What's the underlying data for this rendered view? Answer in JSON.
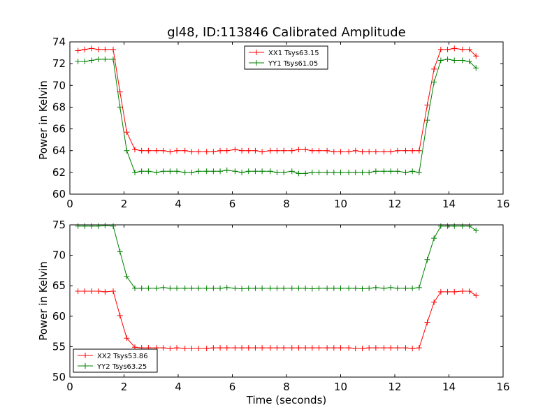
{
  "chart_data": [
    {
      "type": "line",
      "title": "gl48, ID:113846 Calibrated Amplitude",
      "xlabel": "",
      "ylabel": "Power in Kelvin",
      "xlim": [
        0,
        16
      ],
      "ylim": [
        60,
        74
      ],
      "xticks": [
        "0",
        "2",
        "4",
        "6",
        "8",
        "10",
        "12",
        "14",
        "16"
      ],
      "yticks": [
        "60",
        "62",
        "64",
        "66",
        "68",
        "70",
        "72",
        "74"
      ],
      "grid": false,
      "legend": "top-center",
      "x": [
        0.3,
        0.55,
        0.8,
        1.05,
        1.3,
        1.6,
        1.85,
        2.1,
        2.4,
        2.65,
        2.9,
        3.2,
        3.45,
        3.7,
        3.95,
        4.25,
        4.5,
        4.75,
        5.05,
        5.3,
        5.55,
        5.8,
        6.1,
        6.35,
        6.6,
        6.85,
        7.1,
        7.4,
        7.65,
        7.9,
        8.2,
        8.45,
        8.7,
        8.95,
        9.2,
        9.5,
        9.75,
        10.0,
        10.3,
        10.55,
        10.8,
        11.05,
        11.3,
        11.6,
        11.85,
        12.1,
        12.4,
        12.65,
        12.9,
        13.2,
        13.45,
        13.7,
        13.95,
        14.2,
        14.5,
        14.75,
        15.0
      ],
      "series": [
        {
          "name": "XX1 Tsys63.15",
          "color": "#ff0000",
          "values": [
            73.2,
            73.3,
            73.4,
            73.3,
            73.3,
            73.3,
            69.4,
            65.7,
            64.1,
            64.0,
            64.0,
            64.0,
            64.0,
            63.9,
            64.0,
            64.0,
            63.9,
            63.9,
            63.9,
            63.9,
            64.0,
            64.0,
            64.1,
            64.0,
            64.0,
            64.0,
            63.9,
            64.0,
            64.0,
            64.0,
            64.0,
            64.1,
            64.1,
            64.0,
            64.0,
            64.0,
            63.9,
            63.9,
            63.9,
            64.0,
            63.9,
            63.9,
            63.9,
            63.9,
            63.9,
            64.0,
            64.0,
            64.0,
            64.0,
            68.2,
            71.5,
            73.3,
            73.3,
            73.4,
            73.3,
            73.3,
            72.7
          ]
        },
        {
          "name": "YY1 Tsys61.05",
          "color": "#008000",
          "values": [
            72.2,
            72.2,
            72.3,
            72.4,
            72.4,
            72.4,
            68.0,
            64.0,
            62.0,
            62.1,
            62.1,
            62.0,
            62.1,
            62.1,
            62.1,
            62.0,
            62.0,
            62.1,
            62.1,
            62.1,
            62.1,
            62.2,
            62.1,
            62.0,
            62.1,
            62.1,
            62.1,
            62.1,
            62.0,
            62.0,
            62.1,
            61.9,
            61.9,
            62.0,
            62.0,
            62.0,
            62.0,
            62.0,
            62.0,
            62.0,
            62.0,
            62.0,
            62.1,
            62.1,
            62.1,
            62.1,
            62.0,
            62.1,
            62.0,
            66.8,
            70.3,
            72.3,
            72.4,
            72.3,
            72.3,
            72.2,
            71.6
          ]
        }
      ]
    },
    {
      "type": "line",
      "title": "",
      "xlabel": "Time (seconds)",
      "ylabel": "Power in Kelvin",
      "xlim": [
        0,
        16
      ],
      "ylim": [
        50,
        75
      ],
      "xticks": [
        "0",
        "2",
        "4",
        "6",
        "8",
        "10",
        "12",
        "14",
        "16"
      ],
      "yticks": [
        "50",
        "55",
        "60",
        "65",
        "70",
        "75"
      ],
      "grid": false,
      "legend": "lower-left",
      "x": [
        0.3,
        0.55,
        0.8,
        1.05,
        1.3,
        1.6,
        1.85,
        2.1,
        2.4,
        2.65,
        2.9,
        3.2,
        3.45,
        3.7,
        3.95,
        4.25,
        4.5,
        4.75,
        5.05,
        5.3,
        5.55,
        5.8,
        6.1,
        6.35,
        6.6,
        6.85,
        7.1,
        7.4,
        7.65,
        7.9,
        8.2,
        8.45,
        8.7,
        8.95,
        9.2,
        9.5,
        9.75,
        10.0,
        10.3,
        10.55,
        10.8,
        11.05,
        11.3,
        11.6,
        11.85,
        12.1,
        12.4,
        12.65,
        12.9,
        13.2,
        13.45,
        13.7,
        13.95,
        14.2,
        14.5,
        14.75,
        15.0
      ],
      "series": [
        {
          "name": "XX2 Tsys53.86",
          "color": "#ff0000",
          "values": [
            64.1,
            64.1,
            64.1,
            64.1,
            64.0,
            64.1,
            60.1,
            56.4,
            54.9,
            54.8,
            54.8,
            54.8,
            54.8,
            54.7,
            54.8,
            54.7,
            54.7,
            54.7,
            54.7,
            54.8,
            54.8,
            54.8,
            54.8,
            54.8,
            54.8,
            54.8,
            54.8,
            54.8,
            54.8,
            54.8,
            54.8,
            54.8,
            54.8,
            54.8,
            54.8,
            54.8,
            54.8,
            54.8,
            54.8,
            54.7,
            54.7,
            54.8,
            54.8,
            54.8,
            54.8,
            54.8,
            54.8,
            54.7,
            54.8,
            59.0,
            62.3,
            64.0,
            64.0,
            64.0,
            64.1,
            64.1,
            63.4
          ]
        },
        {
          "name": "YY2 Tsys63.25",
          "color": "#008000",
          "values": [
            74.8,
            74.8,
            74.8,
            74.8,
            74.9,
            74.8,
            70.6,
            66.5,
            64.6,
            64.6,
            64.6,
            64.6,
            64.7,
            64.6,
            64.6,
            64.6,
            64.6,
            64.6,
            64.6,
            64.6,
            64.6,
            64.7,
            64.6,
            64.5,
            64.6,
            64.6,
            64.6,
            64.6,
            64.6,
            64.6,
            64.6,
            64.6,
            64.6,
            64.5,
            64.6,
            64.6,
            64.6,
            64.6,
            64.6,
            64.6,
            64.5,
            64.6,
            64.7,
            64.6,
            64.7,
            64.6,
            64.6,
            64.6,
            64.7,
            69.3,
            72.8,
            74.8,
            74.8,
            74.8,
            74.8,
            74.8,
            74.1
          ]
        }
      ]
    }
  ]
}
